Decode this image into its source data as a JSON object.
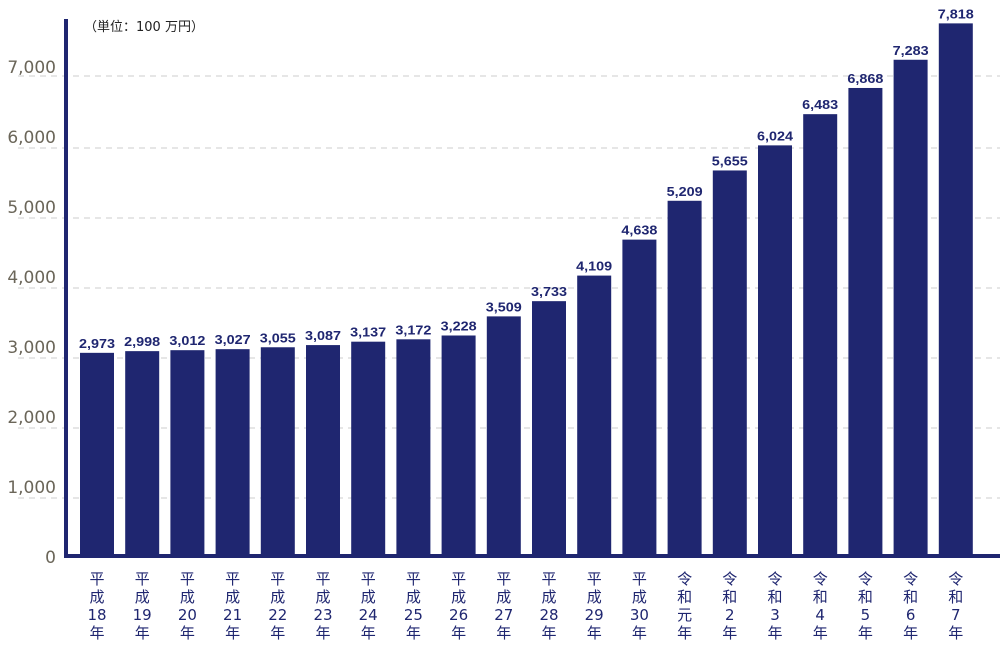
{
  "chart_data": {
    "type": "bar",
    "unit_label": "（単位：100 万円）",
    "categories": [
      [
        "平",
        "成",
        "18",
        "年"
      ],
      [
        "平",
        "成",
        "19",
        "年"
      ],
      [
        "平",
        "成",
        "20",
        "年"
      ],
      [
        "平",
        "成",
        "21",
        "年"
      ],
      [
        "平",
        "成",
        "22",
        "年"
      ],
      [
        "平",
        "成",
        "23",
        "年"
      ],
      [
        "平",
        "成",
        "24",
        "年"
      ],
      [
        "平",
        "成",
        "25",
        "年"
      ],
      [
        "平",
        "成",
        "26",
        "年"
      ],
      [
        "平",
        "成",
        "27",
        "年"
      ],
      [
        "平",
        "成",
        "28",
        "年"
      ],
      [
        "平",
        "成",
        "29",
        "年"
      ],
      [
        "平",
        "成",
        "30",
        "年"
      ],
      [
        "令",
        "和",
        "元",
        "年"
      ],
      [
        "令",
        "和",
        "2",
        "年"
      ],
      [
        "令",
        "和",
        "3",
        "年"
      ],
      [
        "令",
        "和",
        "4",
        "年"
      ],
      [
        "令",
        "和",
        "5",
        "年"
      ],
      [
        "令",
        "和",
        "6",
        "年"
      ],
      [
        "令",
        "和",
        "7",
        "年"
      ]
    ],
    "values": [
      2973,
      2998,
      3012,
      3027,
      3055,
      3087,
      3137,
      3172,
      3228,
      3509,
      3733,
      4109,
      4638,
      5209,
      5655,
      6024,
      6483,
      6868,
      7283,
      7818
    ],
    "data_labels": [
      "2,973",
      "2,998",
      "3,012",
      "3,027",
      "3,055",
      "3,087",
      "3,137",
      "3,172",
      "3,228",
      "3,509",
      "3,733",
      "4,109",
      "4,638",
      "5,209",
      "5,655",
      "6,024",
      "6,483",
      "6,868",
      "7,283",
      "7,818"
    ],
    "yticks": [
      0,
      1000,
      2000,
      3000,
      4000,
      5000,
      6000,
      7000
    ],
    "ytick_labels": [
      "0",
      "1,000",
      "2,000",
      "3,000",
      "4,000",
      "5,000",
      "6,000",
      "7,000"
    ],
    "ylim": [
      0,
      8000
    ],
    "grid": "horizontal dashed",
    "colors": {
      "bar": "#1f2670",
      "axis": "#1f2670",
      "tick_text": "#6b6659",
      "grid": "#cccccc"
    }
  }
}
